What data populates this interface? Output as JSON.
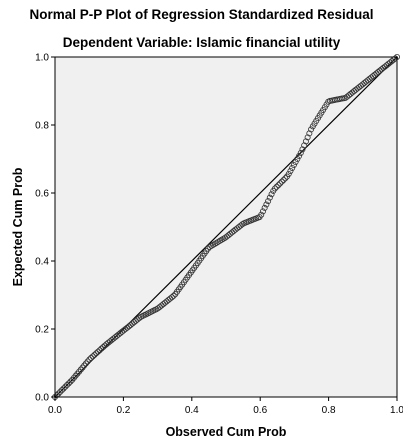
{
  "chart_data": {
    "type": "scatter",
    "title": "Normal P-P Plot of Regression Standardized Residual",
    "subtitle": "Dependent Variable: Islamic financial utility",
    "xlabel": "Observed Cum Prob",
    "ylabel": "Expected Cum Prob",
    "xlim": [
      0,
      1
    ],
    "ylim": [
      0,
      1
    ],
    "xticks": [
      "0.0",
      "0.2",
      "0.4",
      "0.6",
      "0.8",
      "1.0"
    ],
    "yticks": [
      "0.0",
      "0.2",
      "0.4",
      "0.6",
      "0.8",
      "1.0"
    ],
    "reference_line": [
      [
        0,
        0
      ],
      [
        1,
        1
      ]
    ],
    "grid": false,
    "colors": {
      "plot_background": "#f0f0f0",
      "marker_stroke": "#333333",
      "line": "#000000"
    },
    "anchors": [
      [
        0.0,
        0.0
      ],
      [
        0.05,
        0.05
      ],
      [
        0.1,
        0.11
      ],
      [
        0.15,
        0.155
      ],
      [
        0.2,
        0.195
      ],
      [
        0.25,
        0.235
      ],
      [
        0.3,
        0.26
      ],
      [
        0.35,
        0.3
      ],
      [
        0.4,
        0.37
      ],
      [
        0.45,
        0.44
      ],
      [
        0.5,
        0.47
      ],
      [
        0.55,
        0.51
      ],
      [
        0.6,
        0.53
      ],
      [
        0.64,
        0.61
      ],
      [
        0.68,
        0.65
      ],
      [
        0.72,
        0.72
      ],
      [
        0.75,
        0.79
      ],
      [
        0.8,
        0.87
      ],
      [
        0.85,
        0.88
      ],
      [
        0.9,
        0.92
      ],
      [
        0.95,
        0.96
      ],
      [
        1.0,
        1.0
      ]
    ],
    "point_count": 200
  }
}
